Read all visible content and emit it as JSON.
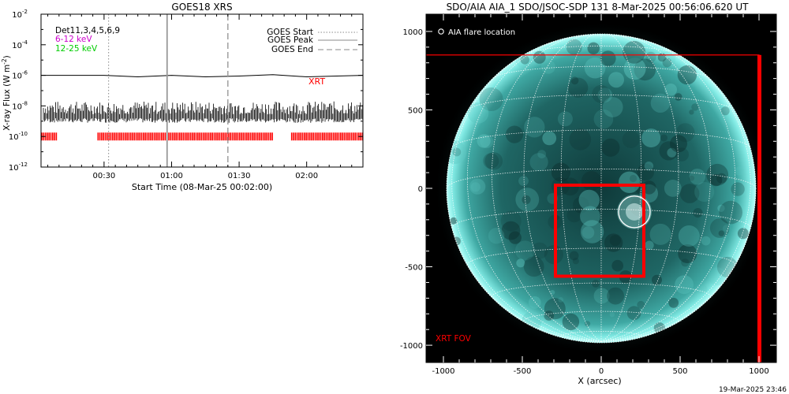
{
  "left_panel": {
    "title": "GOES18 XRS",
    "ylabel": "X-ray Flux (W m",
    "ylabel_exp": "-2",
    "ylabel_close": ")",
    "xlabel": "Start Time (08-Mar-25 00:02:00)",
    "detectors_label": "Det11,3,4,5,6,9",
    "band_low_label": "6-12 keV",
    "band_high_label": "12-25 keV",
    "xrt_label": "XRT",
    "legend": [
      {
        "label": "GOES Start",
        "style": "dotted"
      },
      {
        "label": "GOES Peak",
        "style": "solid"
      },
      {
        "label": "GOES End",
        "style": "dashed"
      }
    ],
    "colors": {
      "band_low": "#cc00cc",
      "band_high": "#00cc00",
      "xrt": "#ff0000",
      "markers": "#999999"
    }
  },
  "right_panel": {
    "title": "SDO/AIA AIA_1 SDO/JSOC-SDP 131  8-Mar-2025 00:56:06.620 UT",
    "xlabel": "X (arcsec)",
    "flare_legend": "AIA flare location",
    "fov_label": "XRT FOV",
    "colors": {
      "fov": "#ff0000",
      "disk": "#2a8f8c",
      "limb": "#9ffffa",
      "grid": "#ffffff"
    }
  },
  "footer": {
    "timestamp": "19-Mar-2025 23:46"
  },
  "chart_data": [
    {
      "type": "line",
      "title": "GOES18 XRS",
      "xlabel": "Start Time (08-Mar-25 00:02:00)",
      "ylabel": "X-ray Flux (W m^-2)",
      "x_range": [
        "00:02",
        "02:25"
      ],
      "x_ticks": [
        "00:30",
        "01:00",
        "01:30",
        "02:00"
      ],
      "y_scale": "log",
      "ylim": [
        1e-12,
        0.01
      ],
      "y_ticks": [
        {
          "value": 1e-12,
          "mant": "10",
          "exp": "-12"
        },
        {
          "value": 1e-10,
          "mant": "10",
          "exp": "-10"
        },
        {
          "value": 1e-08,
          "mant": "10",
          "exp": "-8"
        },
        {
          "value": 1e-06,
          "mant": "10",
          "exp": "-6"
        },
        {
          "value": 0.0001,
          "mant": "10",
          "exp": "-4"
        },
        {
          "value": 0.01,
          "mant": "10",
          "exp": "-2"
        }
      ],
      "series": [
        {
          "name": "GOES Peak",
          "style": "solid",
          "x": [
            "00:02",
            "00:30",
            "00:45",
            "01:00",
            "01:15",
            "01:30",
            "01:45",
            "02:00",
            "02:25"
          ],
          "values": [
            1e-06,
            1e-06,
            8e-07,
            1e-06,
            8e-07,
            9e-07,
            1.1e-06,
            8e-07,
            1e-06
          ]
        }
      ],
      "noise_band": {
        "x_range": [
          "00:02",
          "02:25"
        ],
        "ylim": [
          1e-09,
          2e-08
        ]
      },
      "markers": {
        "GOES Start": "00:32",
        "GOES Peak": "00:58",
        "GOES End": "01:25"
      },
      "xrt_coverage": [
        [
          "00:02",
          "00:09"
        ],
        [
          "00:27",
          "01:45"
        ],
        [
          "01:53",
          "02:25"
        ]
      ],
      "xrt_level": 1e-10
    },
    {
      "type": "scatter",
      "title": "SDO/AIA AIA_1 SDO/JSOC-SDP 131  8-Mar-2025 00:56:06.620 UT",
      "xlabel": "X (arcsec)",
      "ylabel": "",
      "xlim": [
        -1110,
        1110
      ],
      "ylim": [
        -1110,
        1110
      ],
      "x_ticks": [
        -1000,
        -500,
        0,
        500,
        1000
      ],
      "y_ticks": [
        -1000,
        -500,
        0,
        500,
        1000
      ],
      "solar_radius": 980,
      "fov_box": {
        "x0": -1200,
        "x1": 1000,
        "y0": -1200,
        "y1": 850
      },
      "region_box": {
        "x0": -290,
        "x1": 270,
        "y0": -560,
        "y1": 20
      },
      "flare_location": {
        "x": 210,
        "y": -150,
        "radius": 100
      }
    }
  ]
}
